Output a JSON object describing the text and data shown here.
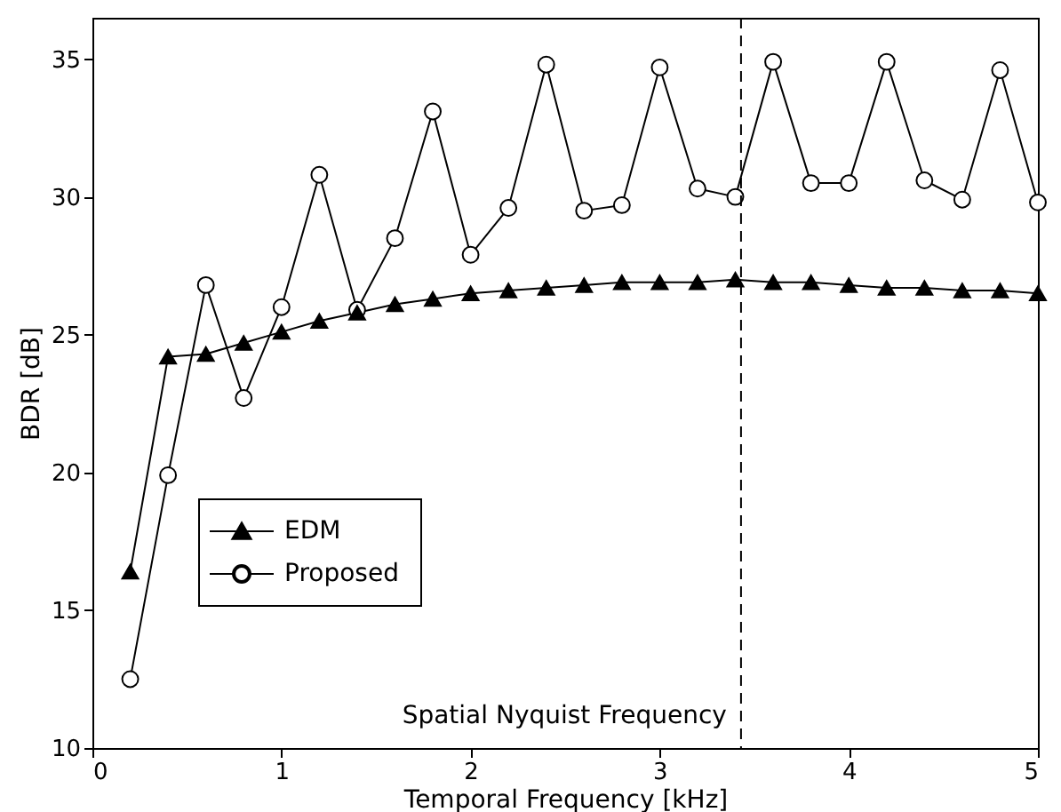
{
  "chart_data": {
    "type": "line",
    "xlabel": "Temporal Frequency [kHz]",
    "ylabel": "BDR [dB]",
    "x": [
      0.2,
      0.4,
      0.6,
      0.8,
      1.0,
      1.2,
      1.4,
      1.6,
      1.8,
      2.0,
      2.2,
      2.4,
      2.6,
      2.8,
      3.0,
      3.2,
      3.4,
      3.6,
      3.8,
      4.0,
      4.2,
      4.4,
      4.6,
      4.8,
      5.0
    ],
    "series": [
      {
        "name": "EDM",
        "color": "#000000",
        "marker": "triangle",
        "values": [
          16.4,
          24.2,
          24.3,
          24.7,
          25.1,
          25.5,
          25.8,
          26.1,
          26.3,
          26.5,
          26.6,
          26.7,
          26.8,
          26.9,
          26.9,
          26.9,
          27.0,
          26.9,
          26.9,
          26.8,
          26.7,
          26.7,
          26.6,
          26.6,
          26.5
        ]
      },
      {
        "name": "Proposed",
        "color": "#000000",
        "marker": "circle",
        "values": [
          12.5,
          19.9,
          26.8,
          22.7,
          26.0,
          30.8,
          25.9,
          28.5,
          33.1,
          27.9,
          29.6,
          34.8,
          29.5,
          29.7,
          34.7,
          30.3,
          30.0,
          34.9,
          30.5,
          30.5,
          34.9,
          30.6,
          29.9,
          34.6,
          29.8
        ]
      }
    ],
    "xlim": [
      0,
      5
    ],
    "xticks": [
      0,
      1,
      2,
      3,
      4,
      5
    ],
    "ylim": [
      10,
      36.5
    ],
    "yticks": [
      10,
      15,
      20,
      25,
      30,
      35
    ],
    "ref_lines": [
      {
        "axis": "x",
        "value": 3.43,
        "label": "Spatial Nyquist Frequency",
        "color": "#000000",
        "line_style": "dashed"
      }
    ],
    "legend": "bottom left",
    "grid": false,
    "line_style": "solid"
  }
}
